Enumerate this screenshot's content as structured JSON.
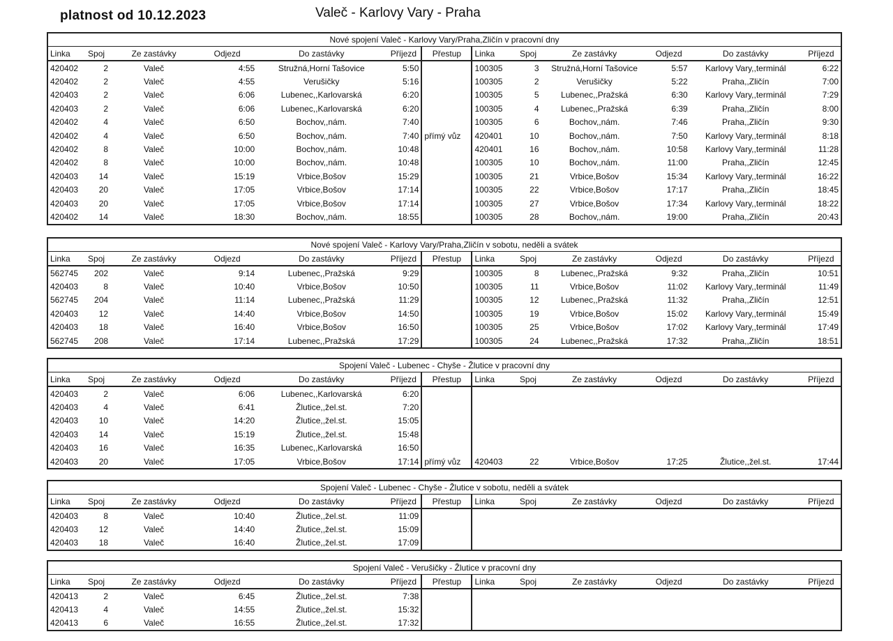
{
  "header": {
    "validity": "platnost od 10.12.2023",
    "route": "Valeč - Karlovy Vary - Praha"
  },
  "columns": [
    "Linka",
    "Spoj",
    "Ze zastávky",
    "Odjezd",
    "Do zastávky",
    "Příjezd",
    "Přestup",
    "Linka",
    "Spoj",
    "Ze zastávky",
    "Odjezd",
    "Do zastávky",
    "Příjezd"
  ],
  "tables": [
    {
      "title": "Nové spojení Valeč - Karlovy Vary/Praha,Zličín v pracovní dny",
      "rows": [
        {
          "left": [
            "420402",
            "2",
            "Valeč",
            "4:55",
            "Stružná,Horní Tašovice",
            "5:50"
          ],
          "transfer": "",
          "right": [
            "100305",
            "3",
            "Stružná,Horní Tašovice",
            "5:57",
            "Karlovy Vary,,terminál",
            "6:22"
          ]
        },
        {
          "left": [
            "420402",
            "2",
            "Valeč",
            "4:55",
            "Verušičky",
            "5:16"
          ],
          "transfer": "",
          "right": [
            "100305",
            "2",
            "Verušičky",
            "5:22",
            "Praha,,Zličín",
            "7:00"
          ]
        },
        {
          "left": [
            "420403",
            "2",
            "Valeč",
            "6:06",
            "Lubenec,,Karlovarská",
            "6:20"
          ],
          "transfer": "",
          "right": [
            "100305",
            "5",
            "Lubenec,,Pražská",
            "6:30",
            "Karlovy Vary,,terminál",
            "7:29"
          ]
        },
        {
          "left": [
            "420403",
            "2",
            "Valeč",
            "6:06",
            "Lubenec,,Karlovarská",
            "6:20"
          ],
          "transfer": "",
          "right": [
            "100305",
            "4",
            "Lubenec,,Pražská",
            "6:39",
            "Praha,,Zličín",
            "8:00"
          ]
        },
        {
          "left": [
            "420402",
            "4",
            "Valeč",
            "6:50",
            "Bochov,,nám.",
            "7:40"
          ],
          "transfer": "",
          "right": [
            "100305",
            "6",
            "Bochov,,nám.",
            "7:46",
            "Praha,,Zličín",
            "9:30"
          ]
        },
        {
          "left": [
            "420402",
            "4",
            "Valeč",
            "6:50",
            "Bochov,,nám.",
            "7:40"
          ],
          "transfer": "přímý vůz",
          "right": [
            "420401",
            "10",
            "Bochov,,nám.",
            "7:50",
            "Karlovy Vary,,terminál",
            "8:18"
          ]
        },
        {
          "left": [
            "420402",
            "8",
            "Valeč",
            "10:00",
            "Bochov,,nám.",
            "10:48"
          ],
          "transfer": "",
          "right": [
            "420401",
            "16",
            "Bochov,,nám.",
            "10:58",
            "Karlovy Vary,,terminál",
            "11:28"
          ]
        },
        {
          "left": [
            "420402",
            "8",
            "Valeč",
            "10:00",
            "Bochov,,nám.",
            "10:48"
          ],
          "transfer": "",
          "right": [
            "100305",
            "10",
            "Bochov,,nám.",
            "11:00",
            "Praha,,Zličín",
            "12:45"
          ]
        },
        {
          "left": [
            "420403",
            "14",
            "Valeč",
            "15:19",
            "Vrbice,Bošov",
            "15:29"
          ],
          "transfer": "",
          "right": [
            "100305",
            "21",
            "Vrbice,Bošov",
            "15:34",
            "Karlovy Vary,,terminál",
            "16:22"
          ]
        },
        {
          "left": [
            "420403",
            "20",
            "Valeč",
            "17:05",
            "Vrbice,Bošov",
            "17:14"
          ],
          "transfer": "",
          "right": [
            "100305",
            "22",
            "Vrbice,Bošov",
            "17:17",
            "Praha,,Zličín",
            "18:45"
          ]
        },
        {
          "left": [
            "420403",
            "20",
            "Valeč",
            "17:05",
            "Vrbice,Bošov",
            "17:14"
          ],
          "transfer": "",
          "right": [
            "100305",
            "27",
            "Vrbice,Bošov",
            "17:34",
            "Karlovy Vary,,terminál",
            "18:22"
          ]
        },
        {
          "left": [
            "420402",
            "14",
            "Valeč",
            "18:30",
            "Bochov,,nám.",
            "18:55"
          ],
          "transfer": "",
          "right": [
            "100305",
            "28",
            "Bochov,,nám.",
            "19:00",
            "Praha,,Zličín",
            "20:43"
          ]
        }
      ]
    },
    {
      "title": "Nové spojení Valeč - Karlovy Vary/Praha,Zličín v sobotu, neděli a svátek",
      "rows": [
        {
          "left": [
            "562745",
            "202",
            "Valeč",
            "9:14",
            "Lubenec,,Pražská",
            "9:29"
          ],
          "transfer": "",
          "right": [
            "100305",
            "8",
            "Lubenec,,Pražská",
            "9:32",
            "Praha,,Zličín",
            "10:51"
          ]
        },
        {
          "left": [
            "420403",
            "8",
            "Valeč",
            "10:40",
            "Vrbice,Bošov",
            "10:50"
          ],
          "transfer": "",
          "right": [
            "100305",
            "11",
            "Vrbice,Bošov",
            "11:02",
            "Karlovy Vary,,terminál",
            "11:49"
          ]
        },
        {
          "left": [
            "562745",
            "204",
            "Valeč",
            "11:14",
            "Lubenec,,Pražská",
            "11:29"
          ],
          "transfer": "",
          "right": [
            "100305",
            "12",
            "Lubenec,,Pražská",
            "11:32",
            "Praha,,Zličín",
            "12:51"
          ]
        },
        {
          "left": [
            "420403",
            "12",
            "Valeč",
            "14:40",
            "Vrbice,Bošov",
            "14:50"
          ],
          "transfer": "",
          "right": [
            "100305",
            "19",
            "Vrbice,Bošov",
            "15:02",
            "Karlovy Vary,,terminál",
            "15:49"
          ]
        },
        {
          "left": [
            "420403",
            "18",
            "Valeč",
            "16:40",
            "Vrbice,Bošov",
            "16:50"
          ],
          "transfer": "",
          "right": [
            "100305",
            "25",
            "Vrbice,Bošov",
            "17:02",
            "Karlovy Vary,,terminál",
            "17:49"
          ]
        },
        {
          "left": [
            "562745",
            "208",
            "Valeč",
            "17:14",
            "Lubenec,,Pražská",
            "17:29"
          ],
          "transfer": "",
          "right": [
            "100305",
            "24",
            "Lubenec,,Pražská",
            "17:32",
            "Praha,,Zličín",
            "18:51"
          ]
        }
      ]
    },
    {
      "title": "Spojení Valeč - Lubenec - Chyše - Žlutice v pracovní dny",
      "rows": [
        {
          "left": [
            "420403",
            "2",
            "Valeč",
            "6:06",
            "Lubenec,,Karlovarská",
            "6:20"
          ],
          "transfer": "",
          "right": null
        },
        {
          "left": [
            "420403",
            "4",
            "Valeč",
            "6:41",
            "Žlutice,,žel.st.",
            "7:20"
          ],
          "transfer": "",
          "right": null
        },
        {
          "left": [
            "420403",
            "10",
            "Valeč",
            "14:20",
            "Žlutice,,žel.st.",
            "15:05"
          ],
          "transfer": "",
          "right": null
        },
        {
          "left": [
            "420403",
            "14",
            "Valeč",
            "15:19",
            "Žlutice,,žel.st.",
            "15:48"
          ],
          "transfer": "",
          "right": null
        },
        {
          "left": [
            "420403",
            "16",
            "Valeč",
            "16:35",
            "Lubenec,,Karlovarská",
            "16:50"
          ],
          "transfer": "",
          "right": null
        },
        {
          "left": [
            "420403",
            "20",
            "Valeč",
            "17:05",
            "Vrbice,Bošov",
            "17:14"
          ],
          "transfer": "přímý vůz",
          "right": [
            "420403",
            "22",
            "Vrbice,Bošov",
            "17:25",
            "Žlutice,,žel.st.",
            "17:44"
          ]
        }
      ]
    },
    {
      "title": "Spojení Valeč - Lubenec - Chyše - Žlutice v sobotu, neděli a svátek",
      "rows": [
        {
          "left": [
            "420403",
            "8",
            "Valeč",
            "10:40",
            "Žlutice,,žel.st.",
            "11:09"
          ],
          "transfer": "",
          "right": null
        },
        {
          "left": [
            "420403",
            "12",
            "Valeč",
            "14:40",
            "Žlutice,,žel.st.",
            "15:09"
          ],
          "transfer": "",
          "right": null
        },
        {
          "left": [
            "420403",
            "18",
            "Valeč",
            "16:40",
            "Žlutice,,žel.st.",
            "17:09"
          ],
          "transfer": "",
          "right": null
        }
      ]
    },
    {
      "title": "Spojení Valeč - Verušičky - Žlutice v pracovní dny",
      "rows": [
        {
          "left": [
            "420413",
            "2",
            "Valeč",
            "6:45",
            "Žlutice,,žel.st.",
            "7:38"
          ],
          "transfer": "",
          "right": null
        },
        {
          "left": [
            "420413",
            "4",
            "Valeč",
            "14:55",
            "Žlutice,,žel.st.",
            "15:32"
          ],
          "transfer": "",
          "right": null
        },
        {
          "left": [
            "420413",
            "6",
            "Valeč",
            "16:55",
            "Žlutice,,žel.st.",
            "17:32"
          ],
          "transfer": "",
          "right": null
        }
      ]
    }
  ]
}
